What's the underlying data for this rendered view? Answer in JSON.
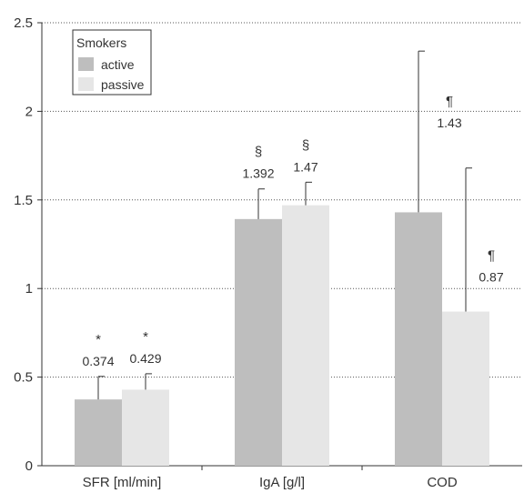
{
  "chart_data": {
    "type": "bar",
    "categories": [
      "SFR [ml/min]",
      "IgA [g/l]",
      "COD"
    ],
    "series": [
      {
        "name": "active",
        "values": [
          0.374,
          1.392,
          1.43
        ],
        "errors": [
          0.13,
          0.17,
          0.91
        ],
        "labels": [
          "0.374",
          "1.392",
          "1.43"
        ],
        "markers": [
          "*",
          "§",
          "¶"
        ],
        "color": "#bebebe"
      },
      {
        "name": "passive",
        "values": [
          0.429,
          1.47,
          0.87
        ],
        "errors": [
          0.09,
          0.13,
          0.81
        ],
        "labels": [
          "0.429",
          "1.47",
          "0.87"
        ],
        "markers": [
          "*",
          "§",
          "¶"
        ],
        "color": "#e6e6e6"
      }
    ],
    "ylim": [
      0,
      2.5
    ],
    "yticks": [
      "0",
      "0.5",
      "1",
      "1.5",
      "2",
      "2.5"
    ],
    "grid": "horizontal dotted",
    "legend": {
      "title": "Smokers",
      "placement": "top-left"
    },
    "title": "",
    "xlabel": "",
    "ylabel": ""
  }
}
